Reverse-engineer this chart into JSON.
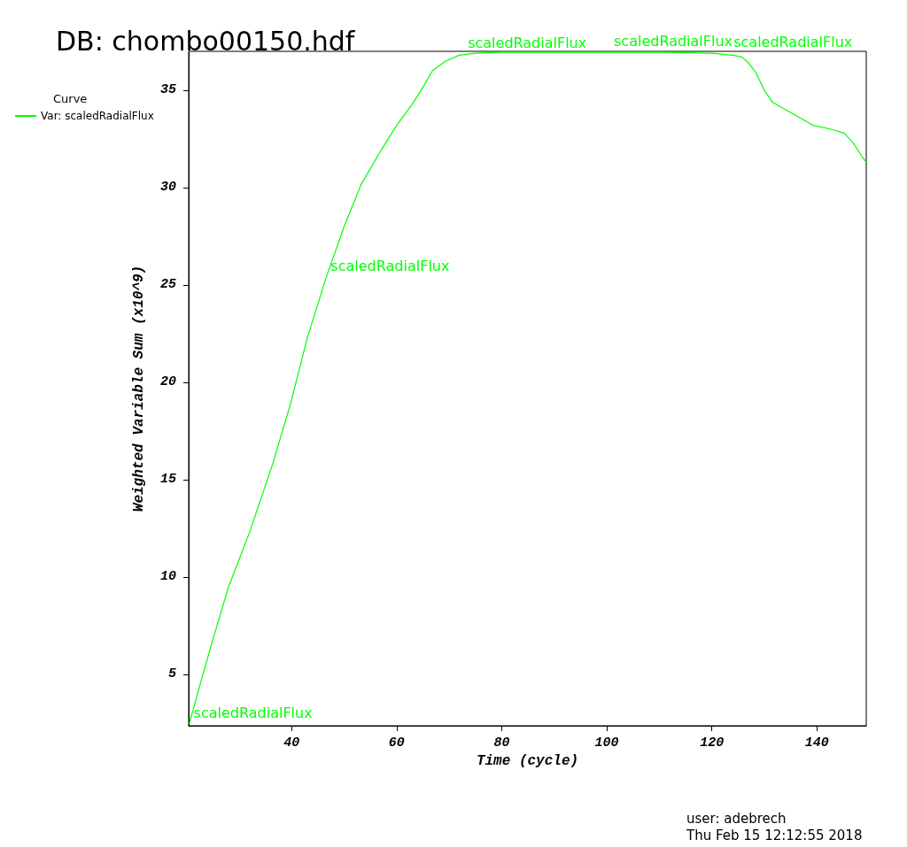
{
  "chart_data": {
    "type": "line",
    "title": "DB: chombo00150.hdf",
    "xlabel": "Time (cycle)",
    "ylabel": "Weighted Variable Sum (x10^9)",
    "legend_title": "Curve",
    "legend": "left",
    "marker": "none",
    "line_style": "solid",
    "grid": false,
    "xlim": [
      20.4,
      149.4
    ],
    "xticks": [
      40,
      60,
      80,
      100,
      120,
      140
    ],
    "ylim": [
      2.36,
      37.0
    ],
    "yticks": [
      5,
      10,
      15,
      20,
      25,
      30,
      35
    ],
    "series": [
      {
        "name": "Var: scaledRadialFlux",
        "color": "#00ff00",
        "x": [
          20.5,
          22.5,
          24.7,
          28,
          32,
          36.5,
          39.8,
          43,
          46.6,
          50,
          53.3,
          57,
          60,
          63,
          65.1,
          66.8,
          69.3,
          71.9,
          75,
          80,
          90,
          100,
          110,
          120,
          124,
          125.8,
          127,
          128.4,
          130,
          131.5,
          133.4,
          136,
          139.3,
          142.7,
          145.2,
          146.9,
          148.6,
          149.4
        ],
        "values": [
          2.45,
          4.4,
          6.5,
          9.5,
          12.3,
          15.9,
          18.9,
          22.3,
          25.4,
          28.0,
          30.2,
          31.9,
          33.2,
          34.3,
          35.2,
          36.0,
          36.5,
          36.8,
          36.9,
          36.95,
          36.95,
          36.95,
          36.95,
          36.9,
          36.8,
          36.7,
          36.4,
          35.9,
          35.0,
          34.4,
          34.1,
          33.7,
          33.2,
          33.0,
          32.8,
          32.3,
          31.6,
          31.3
        ]
      }
    ],
    "annotations": [
      {
        "text": "scaledRadialFlux",
        "x": 20.5,
        "y": 2.45
      },
      {
        "text": "scaledRadialFlux",
        "x": 46.6,
        "y": 25.4
      },
      {
        "text": "scaledRadialFlux",
        "x": 72.7,
        "y": 36.85
      },
      {
        "text": "scaledRadialFlux",
        "x": 100.5,
        "y": 36.95
      },
      {
        "text": "scaledRadialFlux",
        "x": 123.3,
        "y": 36.9
      },
      "user: adebrech",
      "Thu Feb 15 12:12:55 2018"
    ]
  }
}
